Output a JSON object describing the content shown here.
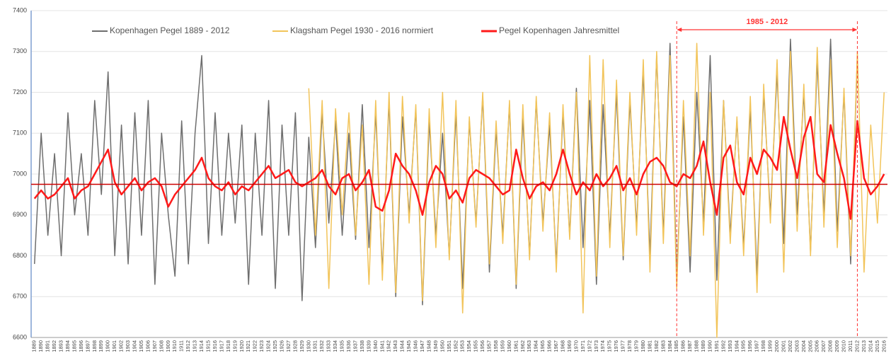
{
  "chart_data": {
    "type": "line",
    "categories": [
      "1889",
      "1890",
      "1891",
      "1892",
      "1893",
      "1894",
      "1895",
      "1896",
      "1897",
      "1898",
      "1899",
      "1900",
      "1901",
      "1902",
      "1903",
      "1904",
      "1905",
      "1906",
      "1907",
      "1908",
      "1909",
      "1910",
      "1911",
      "1912",
      "1913",
      "1914",
      "1915",
      "1916",
      "1917",
      "1918",
      "1919",
      "1920",
      "1921",
      "1922",
      "1923",
      "1924",
      "1925",
      "1926",
      "1927",
      "1928",
      "1929",
      "1930",
      "1931",
      "1932",
      "1933",
      "1934",
      "1935",
      "1936",
      "1937",
      "1938",
      "1939",
      "1940",
      "1941",
      "1942",
      "1943",
      "1944",
      "1945",
      "1946",
      "1947",
      "1948",
      "1949",
      "1950",
      "1951",
      "1952",
      "1953",
      "1954",
      "1955",
      "1956",
      "1957",
      "1958",
      "1959",
      "1960",
      "1961",
      "1962",
      "1963",
      "1964",
      "1965",
      "1966",
      "1967",
      "1968",
      "1969",
      "1970",
      "1971",
      "1972",
      "1973",
      "1974",
      "1975",
      "1976",
      "1977",
      "1978",
      "1979",
      "1980",
      "1981",
      "1982",
      "1983",
      "1984",
      "1985",
      "1986",
      "1987",
      "1988",
      "1989",
      "1990",
      "1991",
      "1992",
      "1993",
      "1994",
      "1995",
      "1996",
      "1997",
      "1998",
      "1999",
      "2000",
      "2001",
      "2002",
      "2003",
      "2004",
      "2005",
      "2006",
      "2007",
      "2008",
      "2009",
      "2010",
      "2011",
      "2012",
      "2013",
      "2014",
      "2015",
      "2016"
    ],
    "series": [
      {
        "name": "Kopenhagen Pegel 1889 - 2012",
        "color": "#6e6e6e",
        "width": 1.5,
        "values": [
          6780,
          7100,
          6850,
          7050,
          6800,
          7150,
          6900,
          7050,
          6850,
          7180,
          6950,
          7250,
          6800,
          7120,
          6780,
          7150,
          6850,
          7180,
          6730,
          7100,
          6900,
          6750,
          7130,
          6780,
          7100,
          7290,
          6830,
          7150,
          6850,
          7100,
          6880,
          7120,
          6730,
          7100,
          6850,
          7180,
          6720,
          7120,
          6850,
          7150,
          6690,
          7090,
          6820,
          7150,
          6880,
          7130,
          6850,
          7100,
          6840,
          7170,
          6820,
          7150,
          6760,
          7180,
          6700,
          7140,
          6900,
          7160,
          6680,
          7130,
          6850,
          7100,
          6800,
          7150,
          6720,
          7130,
          6880,
          7190,
          6760,
          7110,
          6850,
          7170,
          6720,
          7140,
          6800,
          7180,
          6880,
          7120,
          6780,
          7150,
          6850,
          7210,
          6820,
          7180,
          6730,
          7170,
          6850,
          7200,
          6790,
          7180,
          6870,
          7250,
          6800,
          7290,
          6850,
          7320,
          6750,
          7140,
          6760,
          7200,
          6880,
          7290,
          6740,
          7180,
          6850,
          7130,
          6820,
          7160,
          6750,
          7200,
          6900,
          7250,
          6830,
          7330,
          6900,
          7200,
          6810,
          7280,
          6900,
          7330,
          6860,
          7200,
          6780,
          7290,
          null,
          null,
          null,
          null
        ]
      },
      {
        "name": "Klagsham Pegel 1930 - 2016 normiert",
        "color": "#f2c45a",
        "width": 1.5,
        "values": [
          null,
          null,
          null,
          null,
          null,
          null,
          null,
          null,
          null,
          null,
          null,
          null,
          null,
          null,
          null,
          null,
          null,
          null,
          null,
          null,
          null,
          null,
          null,
          null,
          null,
          null,
          null,
          null,
          null,
          null,
          null,
          null,
          null,
          null,
          null,
          null,
          null,
          null,
          null,
          null,
          null,
          7210,
          6850,
          7180,
          6720,
          7160,
          6900,
          7150,
          6850,
          7120,
          6730,
          7180,
          6740,
          7200,
          6710,
          7190,
          6880,
          7170,
          6690,
          7160,
          6820,
          7200,
          6790,
          7180,
          6660,
          7140,
          6870,
          7200,
          6780,
          7130,
          6830,
          7180,
          6730,
          7170,
          6790,
          7190,
          6860,
          7150,
          6760,
          7170,
          6840,
          7200,
          6660,
          7290,
          6750,
          7280,
          6820,
          7230,
          6800,
          7200,
          6850,
          7280,
          6760,
          7300,
          6830,
          7290,
          6720,
          7180,
          6800,
          7320,
          6850,
          7200,
          6600,
          7180,
          6830,
          7140,
          6800,
          7190,
          6710,
          7220,
          6880,
          7280,
          6760,
          7300,
          6860,
          7220,
          6800,
          7310,
          6870,
          7280,
          6820,
          7210,
          6800,
          7300,
          6760,
          7120,
          6880,
          7200
        ]
      },
      {
        "name": "Pegel Kopenhagen Jahresmittel",
        "color": "#ff1a1a",
        "width": 2.5,
        "values": [
          6940,
          6960,
          6940,
          6950,
          6970,
          6990,
          6940,
          6960,
          6970,
          7000,
          7030,
          7060,
          6980,
          6950,
          6970,
          6990,
          6960,
          6980,
          6990,
          6970,
          6920,
          6950,
          6970,
          6990,
          7010,
          7040,
          6990,
          6970,
          6960,
          6980,
          6950,
          6970,
          6960,
          6980,
          7000,
          7020,
          6990,
          7000,
          7010,
          6980,
          6970,
          6980,
          6990,
          7010,
          6970,
          6950,
          6990,
          7000,
          6960,
          6980,
          7010,
          6920,
          6910,
          6960,
          7050,
          7020,
          7000,
          6960,
          6900,
          6980,
          7020,
          7000,
          6940,
          6960,
          6930,
          6990,
          7010,
          7000,
          6990,
          6970,
          6950,
          6960,
          7060,
          6990,
          6940,
          6970,
          6980,
          6960,
          7000,
          7060,
          7000,
          6950,
          6980,
          6960,
          7000,
          6970,
          6990,
          7020,
          6960,
          6990,
          6950,
          7000,
          7030,
          7040,
          7020,
          6980,
          6970,
          7000,
          6990,
          7020,
          7080,
          6980,
          6900,
          7040,
          7070,
          6980,
          6950,
          7040,
          7000,
          7060,
          7040,
          7010,
          7140,
          7060,
          6990,
          7090,
          7140,
          7000,
          6980,
          7120,
          7050,
          6990,
          6890,
          7130,
          6990,
          6950,
          6970,
          7000
        ]
      }
    ],
    "reference_line": {
      "value": 6975,
      "color": "#cc0000"
    },
    "annotation": {
      "text": "1985 - 2012",
      "x_start": "1985",
      "x_end": "2012",
      "color": "#ff3333"
    },
    "ylim": [
      6600,
      7400
    ],
    "yticks": [
      6600,
      6700,
      6800,
      6900,
      7000,
      7100,
      7200,
      7300,
      7400
    ],
    "grid": true
  }
}
